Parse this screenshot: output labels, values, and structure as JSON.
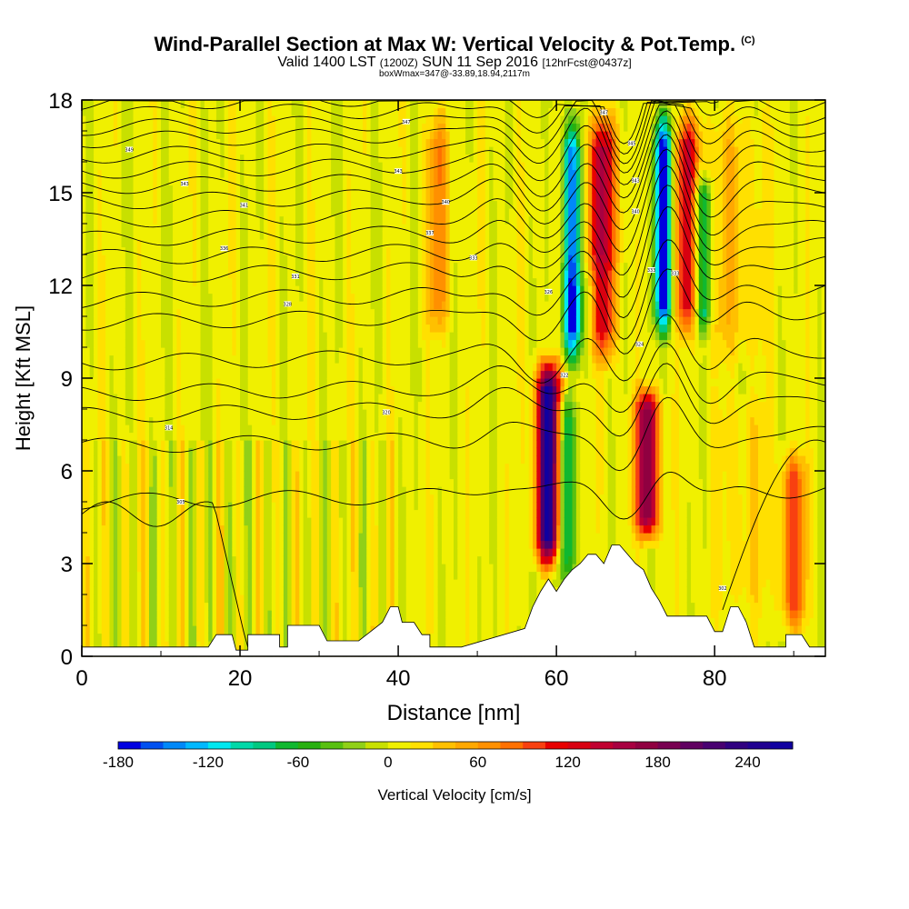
{
  "header": {
    "title": "Wind-Parallel Section at Max W: Vertical Velocity & Pot.Temp.",
    "copyright": "(C)",
    "subtitle_main": "Valid 1400 LST",
    "subtitle_utc": "(1200Z)",
    "subtitle_date": "SUN 11 Sep 2016",
    "subtitle_fcst": "[12hrFcst@0437z]",
    "subsub": "boxWmax=347@-33.89,18.94,2117m"
  },
  "chart_data": {
    "type": "heatmap",
    "xlabel": "Distance [nm]",
    "ylabel": "Height [Kft MSL]",
    "xlim": [
      0,
      94
    ],
    "ylim": [
      0,
      18
    ],
    "xticks": [
      0,
      20,
      40,
      60,
      80
    ],
    "yticks": [
      0,
      3,
      6,
      9,
      12,
      15,
      18
    ],
    "colorbar": {
      "label": "Vertical Velocity [cm/s]",
      "range": [
        -180,
        270
      ],
      "step": 15,
      "tick_labels": [
        -180,
        -120,
        -60,
        0,
        60,
        120,
        180,
        240
      ],
      "colors": [
        "#0000e0",
        "#0050f0",
        "#0088f8",
        "#00b8ff",
        "#00e8f0",
        "#00d8a8",
        "#00c880",
        "#10b830",
        "#28b010",
        "#58c010",
        "#90d018",
        "#c8e000",
        "#f0f000",
        "#ffe000",
        "#ffc000",
        "#ffa800",
        "#ff9000",
        "#ff7000",
        "#f84010",
        "#e80000",
        "#d80010",
        "#c00030",
        "#a80040",
        "#900040",
        "#780050",
        "#600060",
        "#480070",
        "#300080",
        "#200090",
        "#1000a0"
      ]
    },
    "terrain_kft": [
      [
        0,
        0.3
      ],
      [
        16,
        0.3
      ],
      [
        17,
        0.7
      ],
      [
        19,
        0.7
      ],
      [
        19.5,
        0.2
      ],
      [
        21,
        0.2
      ],
      [
        21,
        0.7
      ],
      [
        25,
        0.7
      ],
      [
        25,
        0.3
      ],
      [
        26,
        0.3
      ],
      [
        26,
        1.0
      ],
      [
        30,
        1.0
      ],
      [
        31,
        0.5
      ],
      [
        35,
        0.5
      ],
      [
        36,
        0.7
      ],
      [
        38,
        1.1
      ],
      [
        39,
        1.6
      ],
      [
        40,
        1.6
      ],
      [
        40.5,
        1.1
      ],
      [
        42,
        1.1
      ],
      [
        43,
        0.7
      ],
      [
        44,
        0.7
      ],
      [
        44,
        0.3
      ],
      [
        48,
        0.3
      ],
      [
        56,
        0.9
      ],
      [
        57,
        1.6
      ],
      [
        58,
        2.1
      ],
      [
        59,
        2.5
      ],
      [
        60,
        2.1
      ],
      [
        61,
        2.5
      ],
      [
        62,
        2.8
      ],
      [
        63,
        3.0
      ],
      [
        64,
        3.3
      ],
      [
        65,
        3.3
      ],
      [
        66,
        3.0
      ],
      [
        67,
        3.6
      ],
      [
        68,
        3.6
      ],
      [
        69,
        3.3
      ],
      [
        70,
        3.0
      ],
      [
        71,
        2.8
      ],
      [
        72,
        2.2
      ],
      [
        73,
        1.8
      ],
      [
        74,
        1.3
      ],
      [
        79,
        1.3
      ],
      [
        80,
        0.8
      ],
      [
        81,
        0.8
      ],
      [
        82,
        1.6
      ],
      [
        83,
        1.6
      ],
      [
        84,
        1.1
      ],
      [
        85,
        0.3
      ],
      [
        89,
        0.3
      ],
      [
        89,
        0.7
      ],
      [
        91,
        0.7
      ],
      [
        92,
        0.3
      ],
      [
        94,
        0.3
      ]
    ],
    "updraft_features": [
      {
        "x": 59.0,
        "z_min": 2.5,
        "z_max": 10.0,
        "w_max": 260
      },
      {
        "x": 71.5,
        "z_min": 3.5,
        "z_max": 9.0,
        "w_max": 180
      },
      {
        "x": 66.0,
        "z_min": 9.0,
        "z_max": 18.0,
        "w_max": 120
      },
      {
        "x": 76.5,
        "z_min": 10.0,
        "z_max": 18.0,
        "w_max": 120
      },
      {
        "x": 90.0,
        "z_min": 0.5,
        "z_max": 7.0,
        "w_max": 90
      },
      {
        "x": 45.0,
        "z_min": 10.0,
        "z_max": 18.0,
        "w_max": 60
      }
    ],
    "downdraft_features": [
      {
        "x": 62.0,
        "z_min": 9.0,
        "z_max": 18.0,
        "w_min": -180
      },
      {
        "x": 73.5,
        "z_min": 10.0,
        "z_max": 18.0,
        "w_min": -180
      },
      {
        "x": 61.0,
        "z_min": 2.0,
        "z_max": 9.0,
        "w_min": -100
      },
      {
        "x": 78.5,
        "z_min": 10.0,
        "z_max": 16.0,
        "w_min": -100
      }
    ],
    "theta_contours_z0_kft": [
      5,
      6.8,
      7.8,
      8.5,
      9.5,
      10.8,
      11.5,
      12.3,
      12.9,
      13.5,
      14.1,
      14.7,
      15.2,
      15.7,
      16.2,
      16.7,
      17.1,
      17.5,
      17.9
    ],
    "theta_contour_labels": [
      {
        "x": 6,
        "z": 16.4,
        "text": "349"
      },
      {
        "x": 13,
        "z": 15.3,
        "text": "343"
      },
      {
        "x": 20.5,
        "z": 14.6,
        "text": "341"
      },
      {
        "x": 18,
        "z": 13.2,
        "text": "336"
      },
      {
        "x": 27,
        "z": 12.3,
        "text": "331"
      },
      {
        "x": 26,
        "z": 11.4,
        "text": "328"
      },
      {
        "x": 11,
        "z": 7.4,
        "text": "314"
      },
      {
        "x": 12.5,
        "z": 5.0,
        "text": "305"
      },
      {
        "x": 41,
        "z": 17.3,
        "text": "347"
      },
      {
        "x": 40,
        "z": 15.7,
        "text": "343"
      },
      {
        "x": 46,
        "z": 14.7,
        "text": "340"
      },
      {
        "x": 44,
        "z": 13.7,
        "text": "337"
      },
      {
        "x": 49.5,
        "z": 12.9,
        "text": "333"
      },
      {
        "x": 38.5,
        "z": 7.9,
        "text": "320"
      },
      {
        "x": 59,
        "z": 11.8,
        "text": "326"
      },
      {
        "x": 61,
        "z": 9.1,
        "text": "322"
      },
      {
        "x": 66,
        "z": 17.6,
        "text": "347"
      },
      {
        "x": 69.5,
        "z": 16.6,
        "text": "345"
      },
      {
        "x": 70,
        "z": 15.4,
        "text": "343"
      },
      {
        "x": 70,
        "z": 14.4,
        "text": "340"
      },
      {
        "x": 72,
        "z": 12.5,
        "text": "333"
      },
      {
        "x": 75,
        "z": 12.4,
        "text": "333"
      },
      {
        "x": 70.5,
        "z": 10.1,
        "text": "324"
      },
      {
        "x": 81,
        "z": 2.2,
        "text": "302"
      }
    ]
  }
}
